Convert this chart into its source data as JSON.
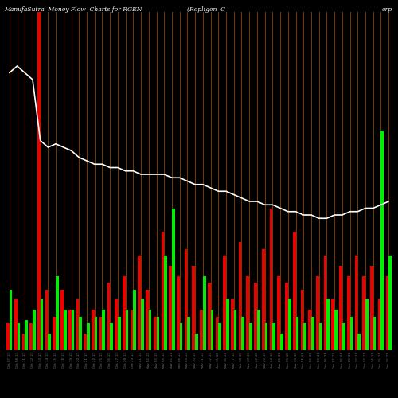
{
  "title_left": "ManufaSutra  Money Flow  Charts for RGEN",
  "title_mid": "(Repligen  C",
  "title_right": "orp",
  "background_color": "#000000",
  "grid_color": "#7B3A00",
  "categories": [
    "Oct 07 '21\nRGEN\n284.78",
    "Oct 08 '21\nRGEN\n287.21",
    "Oct 11 '21\nRGEN\n291.45",
    "Oct 12 '21\nRGEN\n288.90",
    "Oct 13 '21\nRGEN\n293.12",
    "Oct 14 '21\nRGEN\n298.50",
    "Oct 15 '21\nRGEN\n295.30",
    "Oct 18 '21\nRGEN\n289.45",
    "Oct 19 '21\nRGEN\n285.60",
    "Oct 20 '21\nRGEN\n281.75",
    "Oct 21 '21\nRGEN\n278.40",
    "Oct 22 '21\nRGEN\n275.20",
    "Oct 25 '21\nRGEN\n272.80",
    "Oct 26 '21\nRGEN\n270.50",
    "Oct 27 '21\nRGEN\n268.30",
    "Oct 28 '21\nRGEN\n266.10",
    "Oct 29 '21\nRGEN\n264.00",
    "Nov 01 '21\nRGEN\n262.50",
    "Nov 02 '21\nRGEN\n260.80",
    "Nov 03 '21\nRGEN\n259.20",
    "Nov 04 '21\nRGEN\n258.00",
    "Nov 05 '21\nRGEN\n256.80",
    "Nov 08 '21\nRGEN\n255.60",
    "Nov 09 '21\nRGEN\n254.40",
    "Nov 10 '21\nRGEN\n253.20",
    "Nov 11 '21\nRGEN\n252.00",
    "Nov 12 '21\nRGEN\n250.80",
    "Nov 15 '21\nRGEN\n249.60",
    "Nov 16 '21\nRGEN\n248.40",
    "Nov 17 '21\nRGEN\n247.20",
    "Nov 18 '21\nRGEN\n246.00",
    "Nov 19 '21\nRGEN\n244.80",
    "Nov 22 '21\nRGEN\n243.60",
    "Nov 23 '21\nRGEN\n242.40",
    "Nov 24 '21\nRGEN\n241.20",
    "Nov 26 '21\nRGEN\n240.00",
    "Nov 29 '21\nRGEN\n238.80",
    "Nov 30 '21\nRGEN\n237.60",
    "Dec 01 '21\nRGEN\n236.40",
    "Dec 02 '21\nRGEN\n235.20",
    "Dec 03 '21\nRGEN\n234.00",
    "Dec 06 '21\nRGEN\n232.80",
    "Dec 07 '21\nRGEN\n231.60",
    "Dec 08 '21\nRGEN\n230.40",
    "Dec 09 '21\nRGEN\n229.20",
    "Dec 10 '21\nRGEN\n228.00",
    "Dec 13 '21\nRGEN\n226.80",
    "Dec 14 '21\nRGEN\n225.60",
    "Dec 15 '21\nRGEN\n224.40",
    "Dec 16 '21\nRGEN\n223.20"
  ],
  "inflow": [
    18,
    8,
    9,
    12,
    15,
    5,
    22,
    12,
    12,
    10,
    8,
    10,
    12,
    8,
    10,
    12,
    18,
    15,
    12,
    10,
    28,
    42,
    8,
    10,
    5,
    22,
    12,
    8,
    15,
    12,
    10,
    8,
    12,
    8,
    8,
    5,
    15,
    10,
    8,
    10,
    8,
    15,
    12,
    8,
    10,
    5,
    15,
    10,
    65,
    28
  ],
  "outflow": [
    8,
    15,
    5,
    8,
    100,
    18,
    10,
    18,
    12,
    15,
    5,
    12,
    10,
    20,
    15,
    22,
    12,
    28,
    18,
    10,
    35,
    25,
    22,
    30,
    25,
    12,
    20,
    10,
    28,
    15,
    32,
    22,
    20,
    30,
    42,
    22,
    20,
    35,
    18,
    12,
    22,
    28,
    15,
    25,
    22,
    28,
    22,
    25,
    15,
    22
  ],
  "price_line": [
    82,
    84,
    82,
    80,
    62,
    60,
    61,
    60,
    59,
    57,
    56,
    55,
    55,
    54,
    54,
    53,
    53,
    52,
    52,
    52,
    52,
    51,
    51,
    50,
    49,
    49,
    48,
    47,
    47,
    46,
    45,
    44,
    44,
    43,
    43,
    42,
    41,
    41,
    40,
    40,
    39,
    39,
    40,
    40,
    41,
    41,
    42,
    42,
    43,
    44
  ],
  "price_line_color": "#ffffff",
  "inflow_color": "#00ee00",
  "outflow_color": "#ee0000",
  "title_color": "#ffffff",
  "title_fontsize": 5.5
}
